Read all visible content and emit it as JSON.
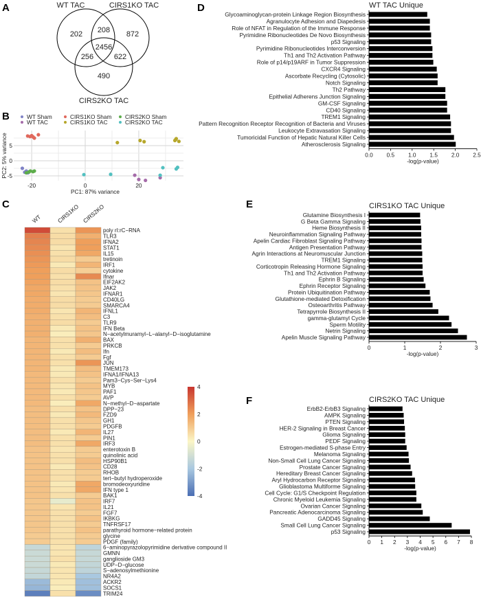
{
  "panel_letters": {
    "a": "A",
    "b": "B",
    "c": "C",
    "d": "D",
    "e": "E",
    "f": "F"
  },
  "chart_data": [
    {
      "type": "venn",
      "sets": [
        "WT TAC",
        "CIRS1KO TAC",
        "CIRS2KO TAC"
      ],
      "regions": {
        "WT_only": 202,
        "WT_CIRS1KO": 208,
        "CIRS1KO_only": 872,
        "all": 2456,
        "WT_CIRS2KO": 256,
        "CIRS1KO_CIRS2KO": 622,
        "CIRS2KO_only": 490
      }
    },
    {
      "type": "scatter",
      "xlabel": "PC1: 87% variance",
      "ylabel": "PC2: 5% variance",
      "xticks": [
        -20,
        0,
        20
      ],
      "yticks": [
        5,
        0,
        -5
      ],
      "xlim": [
        -26.7,
        36.7
      ],
      "ylim": [
        -6.6,
        10
      ],
      "grid": true,
      "legend_position": "top",
      "series": [
        {
          "name": "WT Sham",
          "color": "#7f82c6",
          "points": [
            [
              -23.5,
              -2.5
            ],
            [
              -22.6,
              -3.8
            ],
            [
              -22,
              -3.4
            ],
            [
              -21.4,
              -4.0
            ]
          ]
        },
        {
          "name": "WT TAC",
          "color": "#a56ba9",
          "points": [
            [
              18.5,
              -4.8
            ],
            [
              20,
              -6.2
            ],
            [
              22.5,
              -6.5
            ],
            [
              28,
              -5.6
            ]
          ]
        },
        {
          "name": "CIRS1KO Sham",
          "color": "#e0685c",
          "points": [
            [
              -21.5,
              8.2
            ],
            [
              -20.6,
              8.0
            ],
            [
              -20,
              8.3
            ],
            [
              -19.5,
              7.9
            ],
            [
              -19,
              7.5
            ],
            [
              -17.5,
              8.6
            ]
          ]
        },
        {
          "name": "CIRS1KO TAC",
          "color": "#b6a72b",
          "points": [
            [
              12,
              6
            ],
            [
              20.5,
              6.7
            ],
            [
              22,
              6.3
            ],
            [
              33.5,
              6.7
            ],
            [
              34,
              7.3
            ],
            [
              35,
              6.4
            ],
            [
              33.8,
              7.0
            ]
          ]
        },
        {
          "name": "CIRS2KO Sham",
          "color": "#5dad4b",
          "points": [
            [
              -22,
              -4.0
            ],
            [
              -21,
              -3.7
            ],
            [
              -20.5,
              -3.4
            ],
            [
              -19.5,
              -3.6
            ],
            [
              -19,
              -3.4
            ]
          ]
        },
        {
          "name": "CIRS2KO TAC",
          "color": "#52c0c0",
          "points": [
            [
              -0.5,
              -4.6
            ],
            [
              9.5,
              -4.5
            ],
            [
              29,
              -2.3
            ],
            [
              34,
              -2.7
            ],
            [
              34.5,
              -2.2
            ],
            [
              28,
              -4.8
            ]
          ]
        }
      ]
    },
    {
      "type": "heatmap",
      "columns": [
        "WT",
        "CIRS1KO",
        "CIRS2KO"
      ],
      "colorbar_ticks": [
        4,
        2,
        0,
        -2,
        -4
      ],
      "zlim": [
        -4,
        4
      ],
      "colors": {
        "high": "#c8362f",
        "mid_high": "#ef9f5b",
        "mid": "#fbf6c6",
        "mid_low": "#a9c8e0",
        "low": "#4a6db3"
      },
      "rows": [
        {
          "label": "poly rI:rC−RNA",
          "values": [
            3.6,
            0.5,
            2.2
          ]
        },
        {
          "label": "TLR3",
          "values": [
            2.6,
            0.6,
            1.6
          ]
        },
        {
          "label": "IFNA2",
          "values": [
            2.5,
            0.6,
            2.0
          ]
        },
        {
          "label": "STAT1",
          "values": [
            2.4,
            0.4,
            2.0
          ]
        },
        {
          "label": "IL15",
          "values": [
            2.3,
            0.5,
            1.8
          ]
        },
        {
          "label": "tretinoin",
          "values": [
            2.2,
            0.6,
            1.0
          ]
        },
        {
          "label": "IRF1",
          "values": [
            2.1,
            0.3,
            1.5
          ]
        },
        {
          "label": "cytokine",
          "values": [
            2.0,
            0.6,
            0.9
          ]
        },
        {
          "label": "Ifnar",
          "values": [
            2.0,
            0.5,
            2.4
          ]
        },
        {
          "label": "EIF2AK2",
          "values": [
            1.9,
            0.6,
            1.2
          ]
        },
        {
          "label": "JAK2",
          "values": [
            1.8,
            0.5,
            1.2
          ]
        },
        {
          "label": "IFNAR1",
          "values": [
            1.8,
            0.4,
            1.1
          ]
        },
        {
          "label": "CD40LG",
          "values": [
            1.7,
            0.6,
            1.0
          ]
        },
        {
          "label": "SMARCA4",
          "values": [
            1.7,
            0.6,
            1.0
          ]
        },
        {
          "label": "IFNL1",
          "values": [
            1.7,
            0.4,
            1.5
          ]
        },
        {
          "label": "C3",
          "values": [
            1.6,
            0.5,
            1.3
          ]
        },
        {
          "label": "TLR9",
          "values": [
            1.6,
            0.6,
            1.0
          ]
        },
        {
          "label": "IFN Beta",
          "values": [
            1.6,
            0.3,
            1.2
          ]
        },
        {
          "label": "N−acetylmuramyl−L−alanyl−D−isoglutamine",
          "values": [
            1.6,
            0.2,
            1.1
          ]
        },
        {
          "label": "BAX",
          "values": [
            1.5,
            0.5,
            1.6
          ]
        },
        {
          "label": "PRKCB",
          "values": [
            1.5,
            0.5,
            1.0
          ]
        },
        {
          "label": "Ifn",
          "values": [
            1.5,
            0.3,
            1.3
          ]
        },
        {
          "label": "Fgf",
          "values": [
            1.5,
            0.5,
            1.0
          ]
        },
        {
          "label": "JUN",
          "values": [
            1.5,
            0.5,
            2.2
          ]
        },
        {
          "label": "TMEM173",
          "values": [
            1.5,
            0.3,
            1.3
          ]
        },
        {
          "label": "IFNA1/IFNA13",
          "values": [
            1.4,
            0.3,
            1.2
          ]
        },
        {
          "label": "Pam3−Cys−Ser−Lys4",
          "values": [
            1.4,
            0.5,
            1.0
          ]
        },
        {
          "label": "MYB",
          "values": [
            1.4,
            0.4,
            1.2
          ]
        },
        {
          "label": "PAF1",
          "values": [
            1.4,
            0.3,
            1.1
          ]
        },
        {
          "label": "AVP",
          "values": [
            1.4,
            0.5,
            1.0
          ]
        },
        {
          "label": "N−methyl−D−aspartate",
          "values": [
            1.4,
            0.2,
            1.8
          ]
        },
        {
          "label": "DPP−23",
          "values": [
            1.3,
            0.5,
            1.2
          ]
        },
        {
          "label": "FZD9",
          "values": [
            1.3,
            0.3,
            1.4
          ]
        },
        {
          "label": "GH1",
          "values": [
            1.3,
            0.5,
            1.1
          ]
        },
        {
          "label": "PDGFB",
          "values": [
            1.3,
            0.5,
            1.0
          ]
        },
        {
          "label": "IL27",
          "values": [
            1.3,
            0.3,
            1.5
          ]
        },
        {
          "label": "PIN1",
          "values": [
            1.3,
            0.5,
            1.0
          ]
        },
        {
          "label": "IRF3",
          "values": [
            1.3,
            0.5,
            1.8
          ]
        },
        {
          "label": "enterotoxin B",
          "values": [
            1.2,
            0.4,
            1.0
          ]
        },
        {
          "label": "quinolinic acid",
          "values": [
            1.2,
            0.5,
            1.0
          ]
        },
        {
          "label": "HSP90B1",
          "values": [
            1.2,
            0.5,
            1.3
          ]
        },
        {
          "label": "CD28",
          "values": [
            1.2,
            0.3,
            1.2
          ]
        },
        {
          "label": "RHOB",
          "values": [
            1.2,
            0.5,
            1.0
          ]
        },
        {
          "label": "tert−butyl hydroperoxide",
          "values": [
            1.2,
            0.5,
            1.0
          ]
        },
        {
          "label": "bromodeoxyuridine",
          "values": [
            1.2,
            0.3,
            1.8
          ]
        },
        {
          "label": "IFN type 1",
          "values": [
            1.2,
            0.4,
            1.8
          ]
        },
        {
          "label": "BAK1",
          "values": [
            1.2,
            0.5,
            1.0
          ]
        },
        {
          "label": "IRF7",
          "values": [
            1.1,
            -0.5,
            1.2
          ]
        },
        {
          "label": "IL21",
          "values": [
            1.1,
            0.4,
            1.2
          ]
        },
        {
          "label": "FGF7",
          "values": [
            1.1,
            0.5,
            1.0
          ]
        },
        {
          "label": "IKBKG",
          "values": [
            1.1,
            0.5,
            1.2
          ]
        },
        {
          "label": "TNFRSF17",
          "values": [
            1.1,
            0.5,
            1.0
          ]
        },
        {
          "label": "parathyroid hormone−related protein",
          "values": [
            1.1,
            0.5,
            1.2
          ]
        },
        {
          "label": "glycine",
          "values": [
            1.0,
            0.5,
            1.0
          ]
        },
        {
          "label": "PDGF (family)",
          "values": [
            1.0,
            0.5,
            1.0
          ]
        },
        {
          "label": "6−aminopyrazolopyrimidine derivative compound II",
          "values": [
            -1.3,
            0.4,
            -1.5
          ]
        },
        {
          "label": "GMNN",
          "values": [
            -1.2,
            0.4,
            -1.3
          ]
        },
        {
          "label": "ganglioside GM3",
          "values": [
            -1.2,
            0.5,
            -1.3
          ]
        },
        {
          "label": "UDP−D−glucose",
          "values": [
            -1.2,
            0.3,
            -1.4
          ]
        },
        {
          "label": "S−adenosylmethionine",
          "values": [
            -1.3,
            0.4,
            -1.5
          ]
        },
        {
          "label": "NR4A2",
          "values": [
            -1.4,
            0.4,
            -2.0
          ]
        },
        {
          "label": "ACKR2",
          "values": [
            -2.3,
            0.3,
            -2.2
          ]
        },
        {
          "label": "SOCS1",
          "values": [
            -2.4,
            0.2,
            -2.2
          ]
        },
        {
          "label": "TRIM24",
          "values": [
            -3.6,
            0.5,
            -3.3
          ]
        }
      ]
    },
    {
      "type": "bar",
      "orientation": "horizontal",
      "title": "WT TAC Unique",
      "xlabel": "-log(p-value)",
      "xlim": [
        0,
        2.5
      ],
      "xticks": [
        "0.0",
        "0.5",
        "1.0",
        "1.5",
        "2.0",
        "2.5"
      ],
      "bar_color": "#000000",
      "categories": [
        "Glycoaminoglycan-protein Linkage Region Biosynthesis",
        "Agranulocyte Adhesion and Diapedesis",
        "Role of NFAT in Regulation of the Immune Response",
        "Pyrimidine Ribonucleotides De Novo Biosynthesis",
        "p53 Signaling",
        "Pyrimidine Ribonucleotides Interconversion",
        "Th1 and Th2 Activation Pathway",
        "Role of p14/p19ARF in Tumor Suppression",
        "CXCR4 Signaling",
        "Ascorbate Recycling (Cytosolic)",
        "Notch Signaling",
        "Th2 Pathway",
        "Epithelial Adherens Junction Signaling",
        "GM-CSF Signaling",
        "CD40 Signaling",
        "TREM1 Signaling",
        "Pattern Recognition Receptor Recognition of Bacteria and Viruses",
        "Leukocyte Extravasation Signaling",
        "Tumoricidal Function of Hepatic Natural Killer Cells",
        "Atherosclerosis Signaling"
      ],
      "values": [
        1.35,
        1.41,
        1.41,
        1.44,
        1.44,
        1.47,
        1.47,
        1.49,
        1.57,
        1.59,
        1.59,
        1.77,
        1.77,
        1.81,
        1.81,
        1.88,
        1.9,
        1.9,
        1.97,
        2.01
      ]
    },
    {
      "type": "bar",
      "orientation": "horizontal",
      "title": "CIRS1KO TAC Unique",
      "xlabel": "-log(p-value)",
      "xlim": [
        0,
        3
      ],
      "xticks": [
        "0",
        "1",
        "2",
        "3"
      ],
      "bar_color": "#000000",
      "categories": [
        "Glutamine Biosynthesis I",
        "G Beta Gamma Signaling",
        "Heme Biosynthesis II",
        "Neuroinflammation Signaling Pathway",
        "Apelin Cardiac Fibroblast Signaling Pathway",
        "Antigen Presentation Pathway",
        "Agrin Interactions at Neuromuscular Junction",
        "TREM1 Signaling",
        "Corticotropin Releasing Hormone Signaling",
        "Th1 and Th2 Activation Pathway",
        "Ephrin B Signaling",
        "Ephrin Receptor Signaling",
        "Protein Ubiquitination Pathway",
        "Glutathione-mediated Detoxification",
        "Osteoarthritis Pathway",
        "Tetrapyrrole Biosynthesis II",
        "gamma-glutamyl Cycle",
        "Sperm Motility",
        "Netrin Signaling",
        "Apelin Muscle Signaling Pathway"
      ],
      "values": [
        1.43,
        1.44,
        1.46,
        1.46,
        1.47,
        1.47,
        1.49,
        1.49,
        1.5,
        1.5,
        1.53,
        1.58,
        1.7,
        1.72,
        1.78,
        1.94,
        2.24,
        2.31,
        2.49,
        2.74
      ]
    },
    {
      "type": "bar",
      "orientation": "horizontal",
      "title": "CIRS2KO TAC Unique",
      "xlabel": "-log(p-value)",
      "xlim": [
        0,
        8
      ],
      "xticks": [
        "0",
        "1",
        "2",
        "3",
        "4",
        "5",
        "6",
        "7",
        "8"
      ],
      "bar_color": "#000000",
      "categories": [
        "ErbB2-ErbB3 Signaling",
        "AMPK Signaling",
        "PTEN Signaling",
        "HER-2 Signaling in Breast Cancer",
        "Glioma Signaling",
        "PEDF Signaling",
        "Estrogen-mediated S-phase Entry",
        "Melanoma Signaling",
        "Non-Small Cell Lung Cancer Signaling",
        "Prostate Cancer Signaling",
        "Hereditary Breast Cancer Signaling",
        "Aryl Hydrocarbon Receptor Signaling",
        "Glioblastoma Multiforme Signaling",
        "Cell Cycle: G1/S Checkpoint Regulation",
        "Chronic Myeloid Leukemia Signaling",
        "Ovarian Cancer Signaling",
        "Pancreatic Adenocarcinoma Signaling",
        "GADD45 Signaling",
        "Small Cell Lung Cancer Signaling",
        "p53 Signaling"
      ],
      "values": [
        2.62,
        2.71,
        2.74,
        2.8,
        2.83,
        2.83,
        2.94,
        3.09,
        3.12,
        3.25,
        3.37,
        3.59,
        3.61,
        3.7,
        3.7,
        4.09,
        4.2,
        4.75,
        6.46,
        7.89
      ]
    }
  ]
}
